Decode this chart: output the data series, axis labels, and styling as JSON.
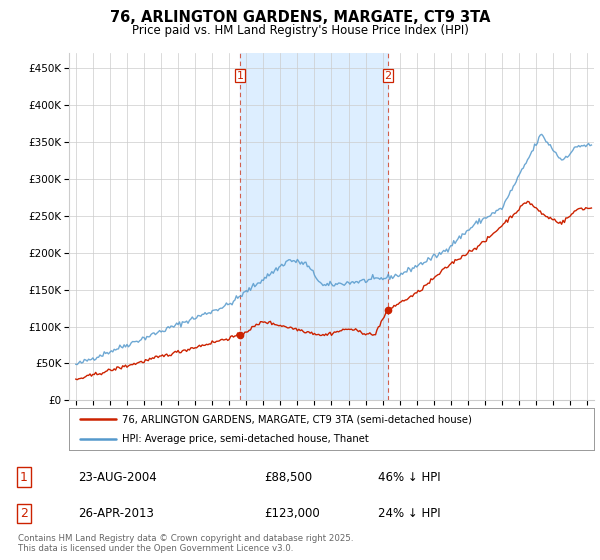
{
  "title": "76, ARLINGTON GARDENS, MARGATE, CT9 3TA",
  "subtitle": "Price paid vs. HM Land Registry's House Price Index (HPI)",
  "ylabel_ticks": [
    "£0",
    "£50K",
    "£100K",
    "£150K",
    "£200K",
    "£250K",
    "£300K",
    "£350K",
    "£400K",
    "£450K"
  ],
  "ytick_values": [
    0,
    50000,
    100000,
    150000,
    200000,
    250000,
    300000,
    350000,
    400000,
    450000
  ],
  "ylim": [
    0,
    470000
  ],
  "xlim_start": 1994.6,
  "xlim_end": 2025.4,
  "hpi_color": "#5599cc",
  "price_color": "#cc2200",
  "sale1_date": 2004.644,
  "sale1_price": 88500,
  "sale2_date": 2013.32,
  "sale2_price": 123000,
  "legend_line1": "76, ARLINGTON GARDENS, MARGATE, CT9 3TA (semi-detached house)",
  "legend_line2": "HPI: Average price, semi-detached house, Thanet",
  "annotation1_label": "1",
  "annotation1_date": "23-AUG-2004",
  "annotation1_price": "£88,500",
  "annotation1_hpi": "46% ↓ HPI",
  "annotation2_label": "2",
  "annotation2_date": "26-APR-2013",
  "annotation2_price": "£123,000",
  "annotation2_hpi": "24% ↓ HPI",
  "footer": "Contains HM Land Registry data © Crown copyright and database right 2025.\nThis data is licensed under the Open Government Licence v3.0.",
  "bg_color": "#ffffff",
  "plot_bg_color": "#ffffff",
  "shade_color": "#ddeeff",
  "grid_color": "#cccccc"
}
